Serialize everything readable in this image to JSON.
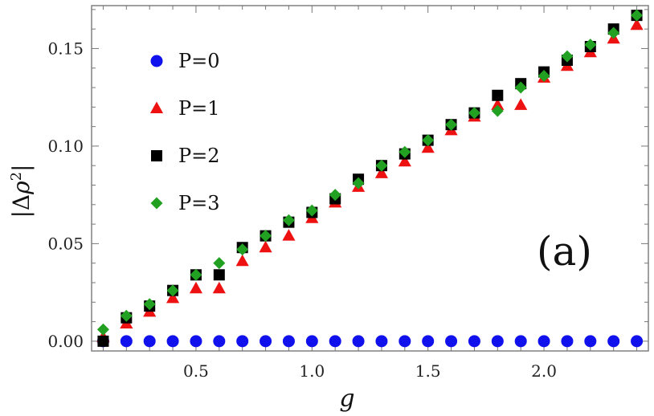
{
  "chart_data": {
    "type": "scatter",
    "xlabel": "g",
    "ylabel": "|Δρ²|",
    "annotation": "(a)",
    "xlim": [
      0.05,
      2.45
    ],
    "ylim": [
      -0.005,
      0.172
    ],
    "x_ticks": [
      0.5,
      1.0,
      1.5,
      2.0
    ],
    "x_tick_labels": [
      "0.5",
      "1.0",
      "1.5",
      "2.0"
    ],
    "y_ticks": [
      0.0,
      0.05,
      0.1,
      0.15
    ],
    "y_tick_labels": [
      "0.00",
      "0.05",
      "0.10",
      "0.15"
    ],
    "grid": false,
    "legend_position": "top-left",
    "x": [
      0.1,
      0.2,
      0.3,
      0.4,
      0.5,
      0.6,
      0.7,
      0.8,
      0.9,
      1.0,
      1.1,
      1.2,
      1.3,
      1.4,
      1.5,
      1.6,
      1.7,
      1.8,
      1.9,
      2.0,
      2.1,
      2.2,
      2.3,
      2.4
    ],
    "series": [
      {
        "name": "P=0",
        "color": "#1111ee",
        "marker": "circle",
        "values": [
          0.0,
          0.0,
          0.0,
          0.0,
          0.0,
          0.0,
          0.0,
          0.0,
          0.0,
          0.0,
          0.0,
          0.0,
          0.0,
          0.0,
          0.0,
          0.0,
          0.0,
          0.0,
          0.0,
          0.0,
          0.0,
          0.0,
          0.0,
          0.0
        ]
      },
      {
        "name": "P=1",
        "color": "#ee1111",
        "marker": "triangle",
        "values": [
          0.002,
          0.009,
          0.015,
          0.022,
          0.027,
          0.027,
          0.041,
          0.048,
          0.054,
          0.063,
          0.071,
          0.079,
          0.086,
          0.092,
          0.099,
          0.108,
          0.115,
          0.121,
          0.121,
          0.135,
          0.141,
          0.148,
          0.155,
          0.162
        ]
      },
      {
        "name": "P=2",
        "color": "#000000",
        "marker": "square",
        "values": [
          0.0,
          0.012,
          0.018,
          0.026,
          0.034,
          0.034,
          0.048,
          0.054,
          0.061,
          0.066,
          0.073,
          0.083,
          0.09,
          0.096,
          0.103,
          0.111,
          0.117,
          0.126,
          0.132,
          0.138,
          0.144,
          0.151,
          0.16,
          0.167
        ]
      },
      {
        "name": "P=3",
        "color": "#22a022",
        "marker": "diamond",
        "values": [
          0.006,
          0.013,
          0.019,
          0.026,
          0.034,
          0.04,
          0.047,
          0.054,
          0.062,
          0.067,
          0.075,
          0.081,
          0.09,
          0.097,
          0.103,
          0.111,
          0.117,
          0.118,
          0.13,
          0.136,
          0.146,
          0.152,
          0.158,
          0.167
        ]
      }
    ]
  }
}
